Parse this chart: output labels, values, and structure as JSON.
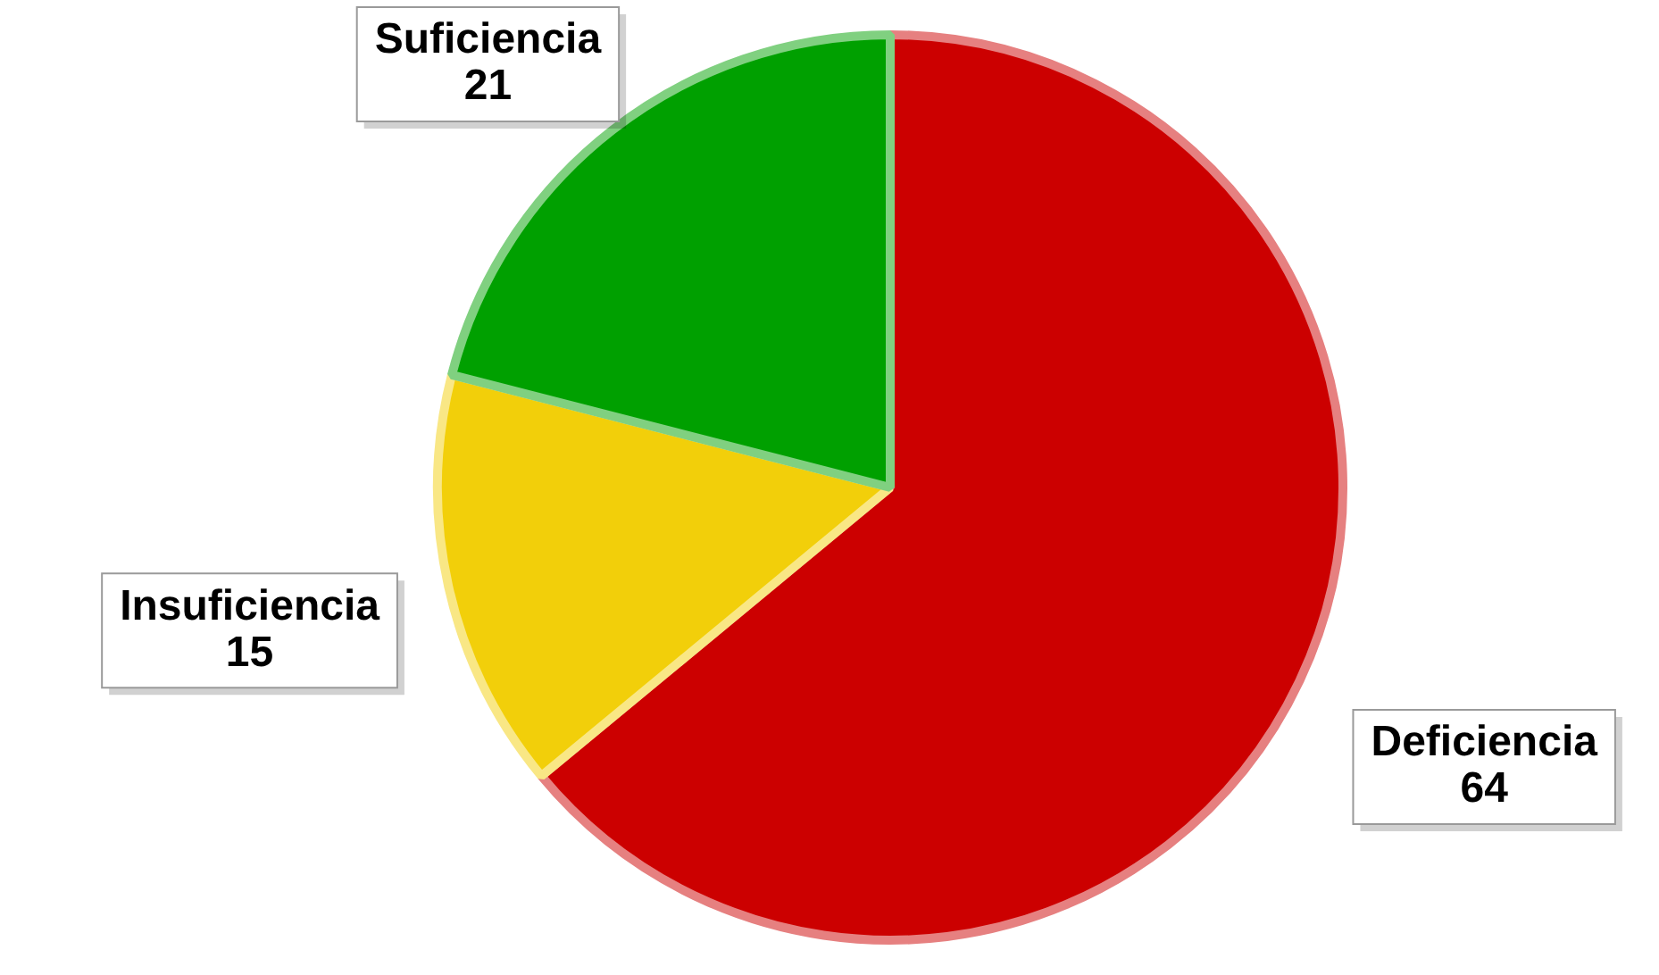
{
  "chart_data": {
    "type": "pie",
    "categories": [
      "Deficiencia",
      "Insuficiencia",
      "Suficiencia"
    ],
    "values": [
      64,
      15,
      21
    ],
    "colors": [
      "#cc0000",
      "#f2cf0a",
      "#00a000"
    ],
    "data_labels": true,
    "legend": false
  }
}
